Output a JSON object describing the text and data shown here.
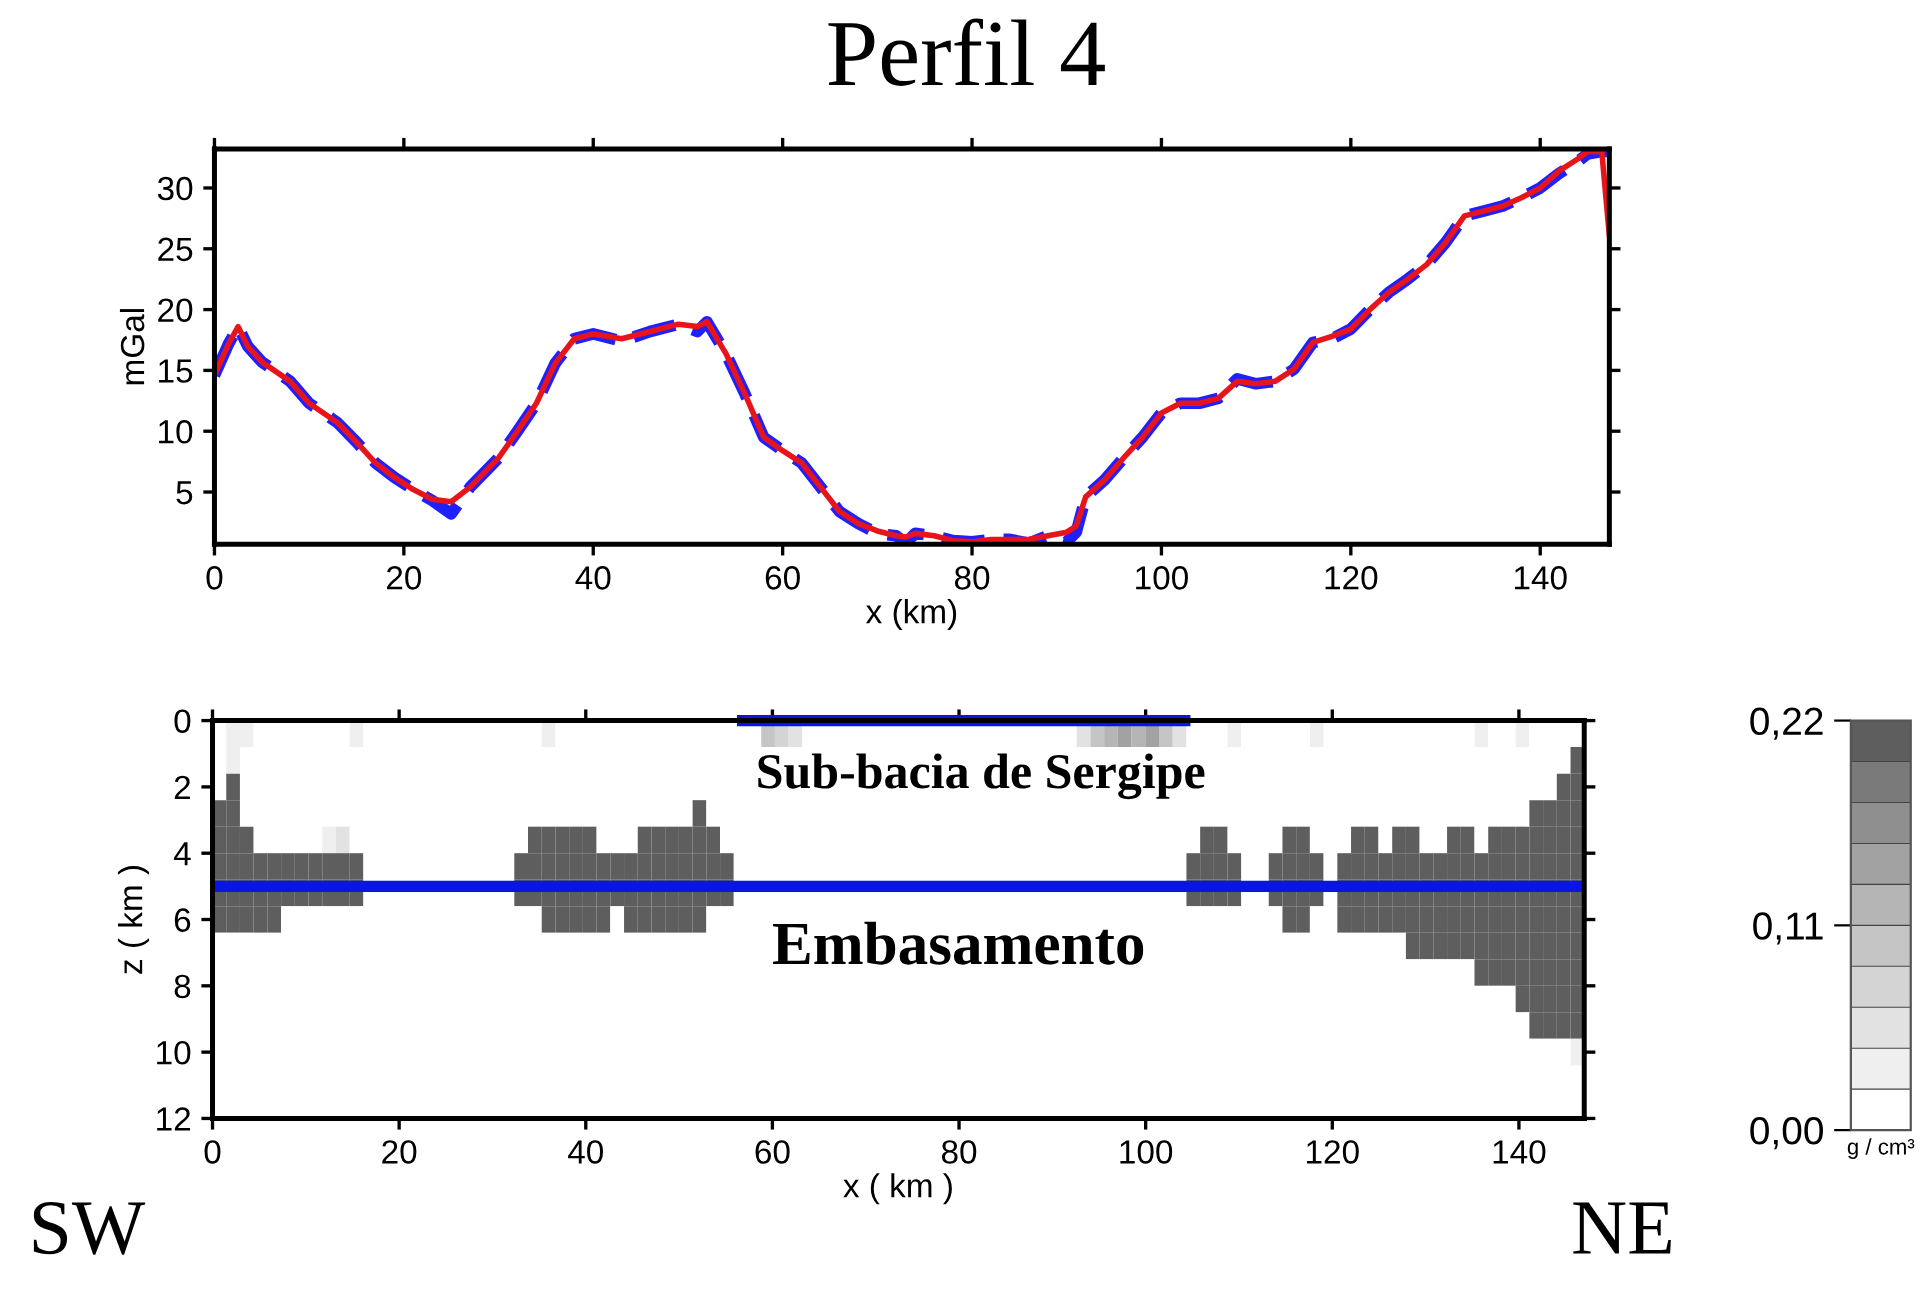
{
  "chart_data": [
    {
      "type": "line",
      "title": "Perfil 4",
      "xlabel": "x (km)",
      "ylabel": "mGal",
      "x": [
        0,
        1.5,
        2.5,
        3.5,
        5,
        8,
        10,
        13,
        15,
        17,
        19,
        21,
        23,
        25,
        27,
        30,
        32,
        34,
        36,
        38,
        40,
        43,
        46,
        49,
        51,
        52,
        54,
        56,
        58,
        60,
        62,
        64,
        66,
        68,
        70,
        72,
        73,
        74,
        76,
        78,
        80,
        82,
        84,
        86,
        88,
        90,
        91,
        92,
        94,
        96,
        98,
        100,
        102,
        104,
        106,
        108,
        110,
        112,
        114,
        116,
        118,
        120,
        122,
        124,
        126,
        128,
        130,
        132,
        134,
        136,
        138,
        140,
        142,
        144,
        145,
        146.5,
        147.3
      ],
      "xlim": [
        0,
        147.3
      ],
      "ylim": [
        0.7,
        33.2
      ],
      "xticks": [
        0,
        20,
        40,
        60,
        80,
        100,
        120,
        140
      ],
      "yticks": [
        5,
        10,
        15,
        20,
        25,
        30
      ],
      "grid": false,
      "series": [
        {
          "color": "#2020ff",
          "line_style": "dashed",
          "values": [
            14.6,
            17.2,
            18.6,
            17,
            15.7,
            14.1,
            12.3,
            10.7,
            9.1,
            7.4,
            6.2,
            5.2,
            4.3,
            3.2,
            5.4,
            7.8,
            10,
            12.3,
            15.6,
            17.6,
            18,
            17.4,
            18.2,
            18.8,
            18.2,
            19,
            16.4,
            13.1,
            9.5,
            8.4,
            7.4,
            5.4,
            3.4,
            2.4,
            1.6,
            1.4,
            0.8,
            1.6,
            1.4,
            1.0,
            0.9,
            1.1,
            1.1,
            0.8,
            1.4,
            0.9,
            1.7,
            4.6,
            6.0,
            7.8,
            9.5,
            11.5,
            12.3,
            12.3,
            12.7,
            14.3,
            13.9,
            14.1,
            15.1,
            17.3,
            17.6,
            18.4,
            20,
            21.4,
            22.5,
            23.7,
            25.5,
            27.7,
            28.1,
            28.5,
            29.2,
            30,
            31.2,
            32.2,
            32.8,
            33.0,
            33.0
          ]
        },
        {
          "color": "#e8141c",
          "line_style": "solid",
          "values": [
            14.6,
            17.2,
            18.6,
            17,
            15.7,
            14.1,
            12.3,
            10.7,
            9.1,
            7.4,
            6.2,
            5.2,
            4.4,
            4.2,
            5.4,
            7.8,
            10,
            12.3,
            15.6,
            17.6,
            18,
            17.6,
            18.2,
            18.8,
            18.6,
            19,
            16.4,
            13.1,
            9.5,
            8.4,
            7.4,
            5.4,
            3.4,
            2.4,
            1.8,
            1.4,
            1.3,
            1.6,
            1.4,
            1.0,
            0.9,
            1.1,
            1.1,
            1.1,
            1.4,
            1.7,
            2.2,
            4.6,
            6.0,
            7.8,
            9.5,
            11.5,
            12.3,
            12.3,
            12.7,
            14.1,
            13.9,
            14.1,
            15.1,
            17.3,
            17.8,
            18.4,
            20,
            21.4,
            22.5,
            23.7,
            25.5,
            27.7,
            28.1,
            28.5,
            29.2,
            30,
            31.4,
            32.4,
            33.0,
            33.0,
            26.1
          ]
        }
      ]
    },
    {
      "type": "heatmap",
      "xlabel": "x ( km )",
      "ylabel": "z ( km )",
      "xlim": [
        0,
        147
      ],
      "ylim": [
        12,
        0
      ],
      "xticks": [
        0,
        20,
        40,
        60,
        80,
        100,
        120,
        140
      ],
      "yticks": [
        0,
        2,
        4,
        6,
        8,
        10,
        12
      ],
      "clim": [
        0,
        0.22
      ],
      "cticks": [
        {
          "value": 0,
          "label": "0,00"
        },
        {
          "value": 0.11,
          "label": "0,11"
        },
        {
          "value": 0.22,
          "label": "0,22"
        }
      ],
      "clabel": "g / cm³",
      "colors": [
        "#ffffff",
        "#efefef",
        "#e2e2e2",
        "#d4d4d4",
        "#c5c5c5",
        "#b5b5b5",
        "#a2a2a2",
        "#8f8f8f",
        "#7a7a7a",
        "#5e5e5e"
      ],
      "annotations": [
        "Sub-bacia de Sergipe",
        "Embasamento",
        "SW",
        "NE"
      ],
      "series": [
        {
          "type": "line",
          "color": "#0a14e6",
          "x": [
            56.2,
            104.8
          ],
          "values": [
            0,
            0
          ]
        },
        {
          "type": "line",
          "color": "#0a14e6",
          "x": [
            0,
            147
          ],
          "values": [
            5,
            5
          ]
        }
      ],
      "cells": [
        [
          0,
          0.04,
          0.03,
          0,
          0,
          0,
          0,
          0,
          0,
          0,
          0.03,
          0,
          0,
          0,
          0,
          0,
          0,
          0,
          0,
          0,
          0,
          0,
          0,
          0,
          0.03,
          0,
          0,
          0,
          0,
          0,
          0,
          0,
          0,
          0,
          0,
          0,
          0,
          0,
          0.02,
          0,
          0.1,
          0.08,
          0.06,
          0,
          0,
          0,
          0,
          0,
          0,
          0,
          0,
          0,
          0,
          0,
          0,
          0,
          0,
          0,
          0,
          0,
          0,
          0,
          0,
          0.06,
          0.1,
          0.12,
          0.14,
          0.12,
          0.14,
          0.1,
          0.06,
          0,
          0,
          0,
          0.03,
          0,
          0,
          0,
          0,
          0,
          0.03,
          0,
          0,
          0,
          0,
          0,
          0,
          0,
          0,
          0,
          0,
          0,
          0.03,
          0,
          0,
          0.03,
          0,
          0,
          0,
          0
        ],
        [
          0,
          0.04,
          0,
          0,
          0,
          0,
          0,
          0,
          0,
          0,
          0,
          0,
          0,
          0,
          0,
          0,
          0,
          0,
          0,
          0,
          0,
          0,
          0,
          0,
          0,
          0,
          0,
          0,
          0,
          0,
          0,
          0,
          0,
          0,
          0,
          0,
          0,
          0,
          null,
          null,
          null,
          null,
          null,
          null,
          null,
          null,
          null,
          null,
          null,
          null,
          null,
          null,
          null,
          null,
          null,
          null,
          null,
          null,
          null,
          null,
          null,
          null,
          null,
          null,
          null,
          null,
          null,
          null,
          null,
          null,
          null,
          null,
          null,
          null,
          0,
          0,
          0,
          0,
          0,
          0,
          0,
          0,
          0,
          0,
          0,
          0,
          0,
          0,
          0,
          0,
          0,
          0,
          0,
          0,
          0,
          0,
          0,
          0,
          0,
          0.22
        ],
        [
          0,
          0.22,
          0,
          0,
          0,
          0,
          0,
          0,
          0,
          0,
          0,
          0,
          0,
          0,
          0,
          0,
          0,
          0,
          0,
          0,
          0,
          0,
          0,
          0,
          0,
          0,
          0,
          0,
          0,
          0,
          0,
          0,
          0,
          0,
          0,
          0,
          0,
          0,
          null,
          null,
          null,
          null,
          null,
          null,
          null,
          null,
          null,
          null,
          null,
          null,
          null,
          null,
          null,
          null,
          null,
          null,
          null,
          null,
          null,
          null,
          null,
          null,
          null,
          null,
          null,
          null,
          null,
          null,
          null,
          null,
          null,
          null,
          null,
          null,
          0,
          0,
          0,
          0,
          0,
          0,
          0,
          0,
          0,
          0,
          0,
          0,
          0,
          0,
          0,
          0,
          0,
          0,
          0,
          0,
          0,
          0,
          0,
          0,
          0.22,
          0.22
        ],
        [
          0.22,
          0.22,
          0,
          0,
          0,
          0,
          0,
          0,
          0,
          0,
          0,
          0,
          0,
          0,
          0,
          0,
          0,
          0,
          0,
          0,
          0,
          0,
          0,
          0,
          0,
          0,
          0,
          0,
          0,
          0,
          0,
          0,
          0,
          0,
          0,
          0.22,
          0,
          0,
          0,
          0,
          0,
          0,
          0,
          0,
          0,
          0,
          0,
          0,
          0,
          0,
          0,
          0,
          0,
          0,
          0,
          0,
          0,
          0,
          0,
          0,
          0,
          0,
          0,
          0,
          0,
          0,
          0,
          0,
          0,
          0,
          0,
          0,
          0,
          0,
          0,
          0,
          0,
          0,
          0,
          0,
          0,
          0,
          0,
          0,
          0,
          0,
          0,
          0,
          0,
          0,
          0,
          0,
          0,
          0,
          0,
          0,
          0.22,
          0.22,
          0.22,
          0.22
        ],
        [
          0.22,
          0.22,
          0.22,
          0,
          0,
          0,
          0,
          0,
          0.04,
          0.05,
          0,
          0,
          0,
          0,
          0,
          0,
          0,
          0,
          0,
          0,
          0,
          0,
          0,
          0.22,
          0.22,
          0.22,
          0.22,
          0.22,
          0,
          0,
          0,
          0.22,
          0.22,
          0.22,
          0.22,
          0.22,
          0.22,
          0,
          0,
          0,
          0,
          0,
          0,
          0,
          0,
          0,
          0,
          0,
          0,
          0,
          0,
          0,
          0,
          0,
          0,
          0,
          0,
          0,
          0,
          0,
          0,
          0,
          0,
          0,
          0,
          0,
          0,
          0,
          0,
          0,
          0,
          0,
          0.22,
          0.22,
          0,
          0,
          0,
          0,
          0.22,
          0.22,
          0,
          0,
          0,
          0.22,
          0.22,
          0,
          0.22,
          0.22,
          0,
          0,
          0.22,
          0.22,
          0,
          0.22,
          0.22,
          0.22,
          0.22,
          0.22,
          0.22,
          0.22
        ],
        [
          0.22,
          0.22,
          0.22,
          0.22,
          0.22,
          0.22,
          0.22,
          0.22,
          0.22,
          0.22,
          0.22,
          0,
          0,
          0,
          0,
          0,
          0,
          0,
          0,
          0,
          0,
          0,
          0.22,
          0.22,
          0.22,
          0.22,
          0.22,
          0.22,
          0.22,
          0.22,
          0.22,
          0.22,
          0.22,
          0.22,
          0.22,
          0.22,
          0.22,
          0.22,
          0,
          0,
          0,
          0,
          0,
          0,
          0,
          0,
          0,
          0,
          0,
          0,
          0,
          0,
          0,
          0,
          0,
          0,
          0,
          0,
          0,
          0,
          0,
          0,
          0,
          0,
          0,
          0,
          0,
          0,
          0,
          0,
          0,
          0.22,
          0.22,
          0.22,
          0.22,
          0,
          0,
          0.22,
          0.22,
          0.22,
          0.22,
          0,
          0.22,
          0.22,
          0.22,
          0.22,
          0.22,
          0.22,
          0.22,
          0.22,
          0.22,
          0.22,
          0.22,
          0.22,
          0.22,
          0.22,
          0.22,
          0.22,
          0.22,
          0.22
        ],
        [
          0.22,
          0.22,
          0.22,
          0.22,
          0.22,
          0.22,
          0.22,
          0.22,
          0.22,
          0.22,
          0.22,
          0,
          0,
          0,
          0,
          0,
          0,
          0,
          0,
          0,
          0,
          0,
          0.22,
          0.22,
          0.22,
          0.22,
          0.22,
          0.22,
          0.22,
          0.22,
          0.22,
          0.22,
          0.22,
          0.22,
          0.22,
          0.22,
          0.22,
          0.22,
          0,
          0,
          0,
          0,
          0,
          0,
          0,
          0,
          0,
          0,
          0,
          0,
          0,
          0,
          0,
          0,
          0,
          0,
          0,
          0,
          0,
          0,
          0,
          0,
          0,
          0,
          0,
          0,
          0,
          0,
          0,
          0,
          0,
          0.22,
          0.22,
          0.22,
          0.22,
          0,
          0,
          0.22,
          0.22,
          0.22,
          0.22,
          0,
          0.22,
          0.22,
          0.22,
          0.22,
          0.22,
          0.22,
          0.22,
          0.22,
          0.22,
          0.22,
          0.22,
          0.22,
          0.22,
          0.22,
          0.22,
          0.22,
          0.22,
          0.22
        ],
        [
          0.22,
          0.22,
          0.22,
          0.22,
          0.22,
          0,
          0,
          0,
          0,
          0,
          0,
          0,
          0,
          0,
          0,
          0,
          0,
          0,
          0,
          0,
          0,
          0,
          0,
          0,
          0.22,
          0.22,
          0.22,
          0.22,
          0.22,
          0,
          0.22,
          0.22,
          0.22,
          0.22,
          0.22,
          0.22,
          0,
          0,
          null,
          null,
          null,
          null,
          null,
          null,
          null,
          null,
          null,
          null,
          null,
          null,
          null,
          null,
          null,
          null,
          null,
          null,
          null,
          null,
          null,
          null,
          null,
          null,
          null,
          null,
          null,
          null,
          null,
          null,
          null,
          null,
          null,
          0,
          0,
          0,
          0,
          0,
          0,
          0,
          0.22,
          0.22,
          0,
          0,
          0.22,
          0.22,
          0.22,
          0.22,
          0.22,
          0.22,
          0.22,
          0.22,
          0.22,
          0.22,
          0.22,
          0.22,
          0.22,
          0.22,
          0.22,
          0.22,
          0.22,
          0.22
        ],
        [
          0,
          0,
          0,
          0,
          0,
          0,
          0,
          0,
          0,
          0,
          0,
          0,
          0,
          0,
          0,
          0,
          0,
          0,
          0,
          0,
          0,
          0,
          0,
          0,
          0,
          0,
          0,
          0,
          0,
          0,
          0,
          0,
          0,
          0,
          0,
          0,
          0,
          0,
          null,
          null,
          null,
          null,
          null,
          null,
          null,
          null,
          null,
          null,
          null,
          null,
          null,
          null,
          null,
          null,
          null,
          null,
          null,
          null,
          null,
          null,
          null,
          null,
          null,
          null,
          null,
          null,
          null,
          null,
          null,
          null,
          null,
          0,
          0,
          0,
          0,
          0,
          0,
          0,
          0,
          0,
          0,
          0,
          0,
          0,
          0,
          0,
          0,
          0.22,
          0.22,
          0.22,
          0.22,
          0.22,
          0.22,
          0.22,
          0.22,
          0.22,
          0.22,
          0.22,
          0.22,
          0.22
        ],
        [
          0,
          0,
          0,
          0,
          0,
          0,
          0,
          0,
          0,
          0,
          0,
          0,
          0,
          0,
          0,
          0,
          0,
          0,
          0,
          0,
          0,
          0,
          0,
          0,
          0,
          0,
          0,
          0,
          0,
          0,
          0,
          0,
          0,
          0,
          0,
          0,
          0,
          0,
          0,
          0,
          0,
          0,
          0,
          0,
          0,
          0,
          0,
          0,
          0,
          0,
          0,
          0,
          0,
          0,
          0,
          0,
          0,
          0,
          0,
          0,
          0,
          0,
          0,
          0,
          0,
          0,
          0,
          0,
          0,
          0,
          0,
          0,
          0,
          0,
          0,
          0,
          0,
          0,
          0,
          0,
          0,
          0,
          0,
          0,
          0,
          0,
          0,
          0,
          0,
          0,
          0,
          0,
          0.22,
          0.22,
          0.22,
          0.22,
          0.22,
          0.22,
          0.22,
          0.22
        ],
        [
          0,
          0,
          0,
          0,
          0,
          0,
          0,
          0,
          0,
          0,
          0,
          0,
          0,
          0,
          0,
          0,
          0,
          0,
          0,
          0,
          0,
          0,
          0,
          0,
          0,
          0,
          0,
          0,
          0,
          0,
          0,
          0,
          0,
          0,
          0,
          0,
          0,
          0,
          0,
          0,
          0,
          0,
          0,
          0,
          0,
          0,
          0,
          0,
          0,
          0,
          0,
          0,
          0,
          0,
          0,
          0,
          0,
          0,
          0,
          0,
          0,
          0,
          0,
          0,
          0,
          0,
          0,
          0,
          0,
          0,
          0,
          0,
          0,
          0,
          0,
          0,
          0,
          0,
          0,
          0,
          0,
          0,
          0,
          0,
          0,
          0,
          0,
          0,
          0,
          0,
          0,
          0,
          0,
          0,
          0,
          0.22,
          0.22,
          0.22,
          0.22,
          0.22
        ],
        [
          0,
          0,
          0,
          0,
          0,
          0,
          0,
          0,
          0,
          0,
          0,
          0,
          0,
          0,
          0,
          0,
          0,
          0,
          0,
          0,
          0,
          0,
          0,
          0,
          0,
          0,
          0,
          0,
          0,
          0,
          0,
          0,
          0,
          0,
          0,
          0,
          0,
          0,
          0,
          0,
          0,
          0,
          0,
          0,
          0,
          0,
          0,
          0,
          0,
          0,
          0,
          0,
          0,
          0,
          0,
          0,
          0,
          0,
          0,
          0,
          0,
          0,
          0,
          0,
          0,
          0,
          0,
          0,
          0,
          0,
          0,
          0,
          0,
          0,
          0,
          0,
          0,
          0,
          0,
          0,
          0,
          0,
          0,
          0,
          0,
          0,
          0,
          0,
          0,
          0,
          0,
          0,
          0,
          0,
          0,
          0,
          0.22,
          0.22,
          0.22,
          0.22
        ],
        [
          0,
          0,
          0,
          0,
          0,
          0,
          0,
          0,
          0,
          0,
          0,
          0,
          0,
          0,
          0,
          0,
          0,
          0,
          0,
          0,
          0,
          0,
          0,
          0,
          0,
          0,
          0,
          0,
          0,
          0,
          0,
          0,
          0,
          0,
          0,
          0,
          0,
          0,
          0,
          0,
          0,
          0,
          0,
          0,
          0,
          0,
          0,
          0,
          0,
          0,
          0,
          0,
          0,
          0,
          0,
          0,
          0,
          0,
          0,
          0,
          0,
          0,
          0,
          0,
          0,
          0,
          0,
          0,
          0,
          0,
          0,
          0,
          0,
          0,
          0,
          0,
          0,
          0,
          0,
          0,
          0,
          0,
          0,
          0,
          0,
          0,
          0,
          0,
          0,
          0,
          0,
          0,
          0,
          0,
          0,
          0,
          0,
          0,
          0,
          0.04
        ],
        [
          0,
          0,
          0,
          0,
          0,
          0,
          0,
          0,
          0,
          0,
          0,
          0,
          0,
          0,
          0,
          0,
          0,
          0,
          0,
          0,
          0,
          0,
          0,
          0,
          0,
          0,
          0,
          0,
          0,
          0,
          0,
          0,
          0,
          0,
          0,
          0,
          0,
          0,
          0,
          0,
          0,
          0,
          0,
          0,
          0,
          0,
          0,
          0,
          0,
          0,
          0,
          0,
          0,
          0,
          0,
          0,
          0,
          0,
          0,
          0,
          0,
          0,
          0,
          0,
          0,
          0,
          0,
          0,
          0,
          0,
          0,
          0,
          0,
          0,
          0,
          0,
          0,
          0,
          0,
          0,
          0,
          0,
          0,
          0,
          0,
          0,
          0,
          0,
          0,
          0,
          0,
          0,
          0,
          0,
          0,
          0,
          0,
          0,
          0,
          0
        ],
        [
          0,
          0,
          0,
          0,
          0,
          0,
          0,
          0,
          0,
          0,
          0,
          0,
          0,
          0,
          0,
          0,
          0,
          0,
          0,
          0,
          0,
          0,
          0,
          0,
          0,
          0,
          0,
          0,
          0,
          0,
          0,
          0,
          0,
          0,
          0,
          0,
          0,
          0,
          0,
          0,
          0,
          0,
          0,
          0,
          0,
          0,
          0,
          0,
          0,
          0,
          0,
          0,
          0,
          0,
          0,
          0,
          0,
          0,
          0,
          0,
          0,
          0,
          0,
          0,
          0,
          0,
          0,
          0,
          0,
          0,
          0,
          0,
          0,
          0,
          0,
          0,
          0,
          0,
          0,
          0,
          0,
          0,
          0,
          0,
          0,
          0,
          0,
          0,
          0,
          0,
          0,
          0,
          0,
          0,
          0,
          0,
          0,
          0,
          0,
          0
        ]
      ]
    }
  ]
}
